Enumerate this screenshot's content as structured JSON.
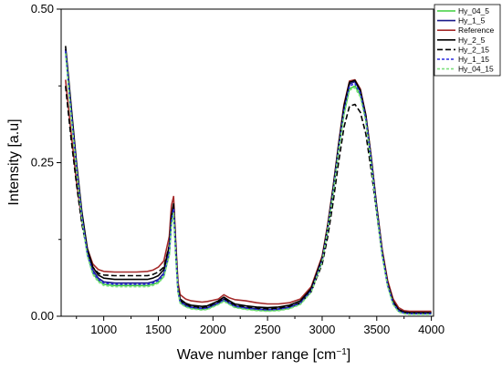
{
  "chart_data": {
    "type": "line",
    "xlabel": "Wave number range [cm",
    "xlabel_sup": "−1",
    "xlabel_end": "]",
    "ylabel": "Intensity [a.u]",
    "xlim": [
      610,
      4020
    ],
    "ylim": [
      0,
      0.5
    ],
    "xticks": [
      1000,
      1500,
      2000,
      2500,
      3000,
      3500,
      4000
    ],
    "yticks": [
      0.0,
      0.25,
      0.5
    ],
    "ytick_labels": [
      "0.00",
      "0.25",
      "0.50"
    ],
    "grid": false,
    "legend_position": "top-right",
    "series": [
      {
        "name": "Hy_04_5",
        "color": "#3fcf3f",
        "dash": "solid",
        "x": [
          650,
          700,
          750,
          800,
          850,
          900,
          950,
          1000,
          1100,
          1200,
          1300,
          1400,
          1450,
          1500,
          1550,
          1600,
          1620,
          1640,
          1660,
          1680,
          1700,
          1750,
          1800,
          1850,
          1900,
          1950,
          2000,
          2050,
          2100,
          2150,
          2200,
          2300,
          2400,
          2500,
          2600,
          2700,
          2800,
          2900,
          3000,
          3050,
          3100,
          3150,
          3200,
          3250,
          3300,
          3350,
          3400,
          3450,
          3500,
          3550,
          3600,
          3650,
          3700,
          3750,
          3800,
          4000
        ],
        "y": [
          0.43,
          0.33,
          0.24,
          0.16,
          0.1,
          0.07,
          0.058,
          0.052,
          0.05,
          0.05,
          0.05,
          0.05,
          0.052,
          0.055,
          0.065,
          0.1,
          0.15,
          0.17,
          0.1,
          0.04,
          0.022,
          0.016,
          0.013,
          0.012,
          0.011,
          0.012,
          0.016,
          0.02,
          0.025,
          0.02,
          0.015,
          0.012,
          0.01,
          0.009,
          0.01,
          0.013,
          0.02,
          0.04,
          0.09,
          0.14,
          0.2,
          0.27,
          0.33,
          0.37,
          0.375,
          0.36,
          0.32,
          0.25,
          0.17,
          0.1,
          0.05,
          0.02,
          0.008,
          0.005,
          0.004,
          0.004
        ]
      },
      {
        "name": "Hy_1_5",
        "color": "#1a1a8a",
        "dash": "solid",
        "x": [
          650,
          700,
          750,
          800,
          850,
          900,
          950,
          1000,
          1100,
          1200,
          1300,
          1400,
          1450,
          1500,
          1550,
          1600,
          1620,
          1640,
          1660,
          1680,
          1700,
          1750,
          1800,
          1850,
          1900,
          1950,
          2000,
          2050,
          2100,
          2150,
          2200,
          2300,
          2400,
          2500,
          2600,
          2700,
          2800,
          2900,
          3000,
          3050,
          3100,
          3150,
          3200,
          3250,
          3300,
          3350,
          3400,
          3450,
          3500,
          3550,
          3600,
          3650,
          3700,
          3750,
          3800,
          4000
        ],
        "y": [
          0.435,
          0.34,
          0.245,
          0.165,
          0.105,
          0.075,
          0.062,
          0.056,
          0.054,
          0.054,
          0.054,
          0.054,
          0.056,
          0.06,
          0.07,
          0.11,
          0.16,
          0.18,
          0.11,
          0.045,
          0.025,
          0.018,
          0.015,
          0.014,
          0.013,
          0.014,
          0.018,
          0.022,
          0.028,
          0.022,
          0.017,
          0.014,
          0.012,
          0.011,
          0.012,
          0.015,
          0.022,
          0.042,
          0.092,
          0.142,
          0.205,
          0.275,
          0.338,
          0.378,
          0.382,
          0.366,
          0.325,
          0.255,
          0.175,
          0.103,
          0.052,
          0.022,
          0.01,
          0.006,
          0.005,
          0.005
        ]
      },
      {
        "name": "Reference",
        "color": "#a52a2a",
        "dash": "solid",
        "x": [
          650,
          700,
          750,
          800,
          850,
          900,
          950,
          1000,
          1100,
          1200,
          1300,
          1400,
          1450,
          1500,
          1550,
          1600,
          1620,
          1640,
          1660,
          1680,
          1700,
          1750,
          1800,
          1850,
          1900,
          1950,
          2000,
          2050,
          2100,
          2150,
          2200,
          2300,
          2400,
          2500,
          2600,
          2700,
          2800,
          2900,
          3000,
          3050,
          3100,
          3150,
          3200,
          3250,
          3300,
          3350,
          3400,
          3450,
          3500,
          3550,
          3600,
          3650,
          3700,
          3750,
          3800,
          4000
        ],
        "y": [
          0.385,
          0.3,
          0.22,
          0.155,
          0.11,
          0.085,
          0.076,
          0.073,
          0.072,
          0.072,
          0.072,
          0.073,
          0.075,
          0.08,
          0.09,
          0.13,
          0.18,
          0.195,
          0.12,
          0.055,
          0.035,
          0.028,
          0.025,
          0.024,
          0.023,
          0.024,
          0.026,
          0.028,
          0.035,
          0.03,
          0.027,
          0.025,
          0.022,
          0.02,
          0.02,
          0.022,
          0.028,
          0.048,
          0.098,
          0.148,
          0.21,
          0.28,
          0.345,
          0.383,
          0.385,
          0.37,
          0.328,
          0.258,
          0.178,
          0.108,
          0.058,
          0.028,
          0.014,
          0.009,
          0.008,
          0.008
        ]
      },
      {
        "name": "Hy_2_5",
        "color": "#000000",
        "dash": "solid",
        "x": [
          650,
          700,
          750,
          800,
          850,
          900,
          950,
          1000,
          1100,
          1200,
          1300,
          1400,
          1450,
          1500,
          1550,
          1600,
          1620,
          1640,
          1660,
          1680,
          1700,
          1750,
          1800,
          1850,
          1900,
          1950,
          2000,
          2050,
          2100,
          2150,
          2200,
          2300,
          2400,
          2500,
          2600,
          2700,
          2800,
          2900,
          3000,
          3050,
          3100,
          3150,
          3200,
          3250,
          3300,
          3350,
          3400,
          3450,
          3500,
          3550,
          3600,
          3650,
          3700,
          3750,
          3800,
          4000
        ],
        "y": [
          0.44,
          0.345,
          0.25,
          0.17,
          0.11,
          0.08,
          0.067,
          0.062,
          0.06,
          0.06,
          0.06,
          0.06,
          0.062,
          0.066,
          0.076,
          0.115,
          0.163,
          0.183,
          0.113,
          0.048,
          0.028,
          0.021,
          0.018,
          0.017,
          0.016,
          0.017,
          0.021,
          0.025,
          0.031,
          0.025,
          0.02,
          0.017,
          0.015,
          0.014,
          0.015,
          0.018,
          0.025,
          0.045,
          0.095,
          0.145,
          0.208,
          0.278,
          0.342,
          0.381,
          0.384,
          0.368,
          0.327,
          0.257,
          0.177,
          0.105,
          0.054,
          0.024,
          0.011,
          0.007,
          0.006,
          0.006
        ]
      },
      {
        "name": "Hy_2_15",
        "color": "#000000",
        "dash": "long",
        "x": [
          650,
          700,
          750,
          800,
          850,
          900,
          950,
          1000,
          1100,
          1200,
          1300,
          1400,
          1450,
          1500,
          1550,
          1600,
          1620,
          1640,
          1660,
          1680,
          1700,
          1750,
          1800,
          1850,
          1900,
          1950,
          2000,
          2050,
          2100,
          2150,
          2200,
          2300,
          2400,
          2500,
          2600,
          2700,
          2800,
          2900,
          3000,
          3050,
          3100,
          3150,
          3200,
          3250,
          3300,
          3350,
          3400,
          3450,
          3500,
          3550,
          3600,
          3650,
          3700,
          3750,
          3800,
          4000
        ],
        "y": [
          0.375,
          0.29,
          0.215,
          0.15,
          0.105,
          0.08,
          0.07,
          0.067,
          0.066,
          0.066,
          0.066,
          0.066,
          0.068,
          0.072,
          0.08,
          0.115,
          0.16,
          0.175,
          0.105,
          0.045,
          0.026,
          0.019,
          0.016,
          0.015,
          0.014,
          0.015,
          0.019,
          0.023,
          0.029,
          0.023,
          0.018,
          0.015,
          0.013,
          0.012,
          0.013,
          0.016,
          0.022,
          0.04,
          0.085,
          0.128,
          0.185,
          0.25,
          0.308,
          0.342,
          0.345,
          0.332,
          0.297,
          0.237,
          0.167,
          0.1,
          0.052,
          0.023,
          0.01,
          0.006,
          0.005,
          0.005
        ]
      },
      {
        "name": "Hy_1_15",
        "color": "#2a2ae0",
        "dash": "short",
        "x": [
          650,
          700,
          750,
          800,
          850,
          900,
          950,
          1000,
          1100,
          1200,
          1300,
          1400,
          1450,
          1500,
          1550,
          1600,
          1620,
          1640,
          1660,
          1680,
          1700,
          1750,
          1800,
          1850,
          1900,
          1950,
          2000,
          2050,
          2100,
          2150,
          2200,
          2300,
          2400,
          2500,
          2600,
          2700,
          2800,
          2900,
          3000,
          3050,
          3100,
          3150,
          3200,
          3250,
          3300,
          3350,
          3400,
          3450,
          3500,
          3550,
          3600,
          3650,
          3700,
          3750,
          3800,
          4000
        ],
        "y": [
          0.432,
          0.335,
          0.242,
          0.162,
          0.102,
          0.072,
          0.06,
          0.054,
          0.052,
          0.052,
          0.052,
          0.052,
          0.054,
          0.058,
          0.068,
          0.105,
          0.155,
          0.175,
          0.105,
          0.042,
          0.023,
          0.017,
          0.014,
          0.013,
          0.012,
          0.013,
          0.017,
          0.021,
          0.026,
          0.021,
          0.016,
          0.013,
          0.011,
          0.01,
          0.011,
          0.014,
          0.021,
          0.041,
          0.091,
          0.141,
          0.203,
          0.273,
          0.335,
          0.375,
          0.379,
          0.363,
          0.322,
          0.252,
          0.172,
          0.101,
          0.051,
          0.021,
          0.009,
          0.005,
          0.004,
          0.004
        ]
      },
      {
        "name": "Hy_04_15",
        "color": "#7fe07f",
        "dash": "short",
        "x": [
          650,
          700,
          750,
          800,
          850,
          900,
          950,
          1000,
          1100,
          1200,
          1300,
          1400,
          1450,
          1500,
          1550,
          1600,
          1620,
          1640,
          1660,
          1680,
          1700,
          1750,
          1800,
          1850,
          1900,
          1950,
          2000,
          2050,
          2100,
          2150,
          2200,
          2300,
          2400,
          2500,
          2600,
          2700,
          2800,
          2900,
          3000,
          3050,
          3100,
          3150,
          3200,
          3250,
          3300,
          3350,
          3400,
          3450,
          3500,
          3550,
          3600,
          3650,
          3700,
          3750,
          3800,
          4000
        ],
        "y": [
          0.428,
          0.33,
          0.238,
          0.158,
          0.098,
          0.068,
          0.056,
          0.05,
          0.048,
          0.048,
          0.048,
          0.048,
          0.05,
          0.054,
          0.064,
          0.1,
          0.148,
          0.168,
          0.1,
          0.04,
          0.021,
          0.015,
          0.012,
          0.011,
          0.01,
          0.011,
          0.015,
          0.019,
          0.024,
          0.019,
          0.014,
          0.011,
          0.009,
          0.008,
          0.009,
          0.012,
          0.019,
          0.039,
          0.089,
          0.139,
          0.199,
          0.268,
          0.328,
          0.368,
          0.372,
          0.357,
          0.317,
          0.247,
          0.168,
          0.098,
          0.049,
          0.019,
          0.007,
          0.004,
          0.003,
          0.003
        ]
      }
    ]
  }
}
